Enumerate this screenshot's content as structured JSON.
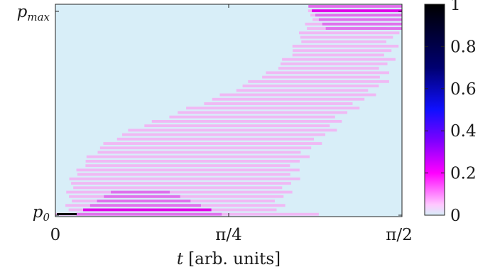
{
  "chart_data": {
    "type": "heatmap",
    "title": "",
    "xlabel": {
      "var": "t",
      "unit": "[arb. units]"
    },
    "ylabel": "",
    "x_range": [
      0,
      1.5708
    ],
    "y_range": [
      0,
      1
    ],
    "x_ticks": [
      {
        "value": 0,
        "label": "0"
      },
      {
        "value": 0.7854,
        "label": "π/4"
      },
      {
        "value": 1.5708,
        "label": "π/2"
      }
    ],
    "y_ticks": [
      {
        "value": 0,
        "label": "p",
        "sub": "0"
      },
      {
        "value": 1,
        "label": "p",
        "sub": "max"
      }
    ],
    "colorbar": {
      "range": [
        0,
        1
      ],
      "ticks": [
        "0",
        "0.2",
        "0.4",
        "0.6",
        "0.8",
        "1"
      ],
      "colors": [
        "#d8eef8",
        "#ffb0ff",
        "#ff00ff",
        "#8000ff",
        "#0000ff",
        "#000040",
        "#000000"
      ]
    },
    "background_value": 0,
    "ridge": {
      "description": "S-shaped occupancy band moving from p0 at t≈0 to pmax at t≈π/2",
      "rows": 48
    }
  },
  "colors": {
    "background": "#d8eef8",
    "band_light": "#f0b8f4",
    "band_mid": "#e070ec",
    "band_strong": "#e000e8"
  }
}
